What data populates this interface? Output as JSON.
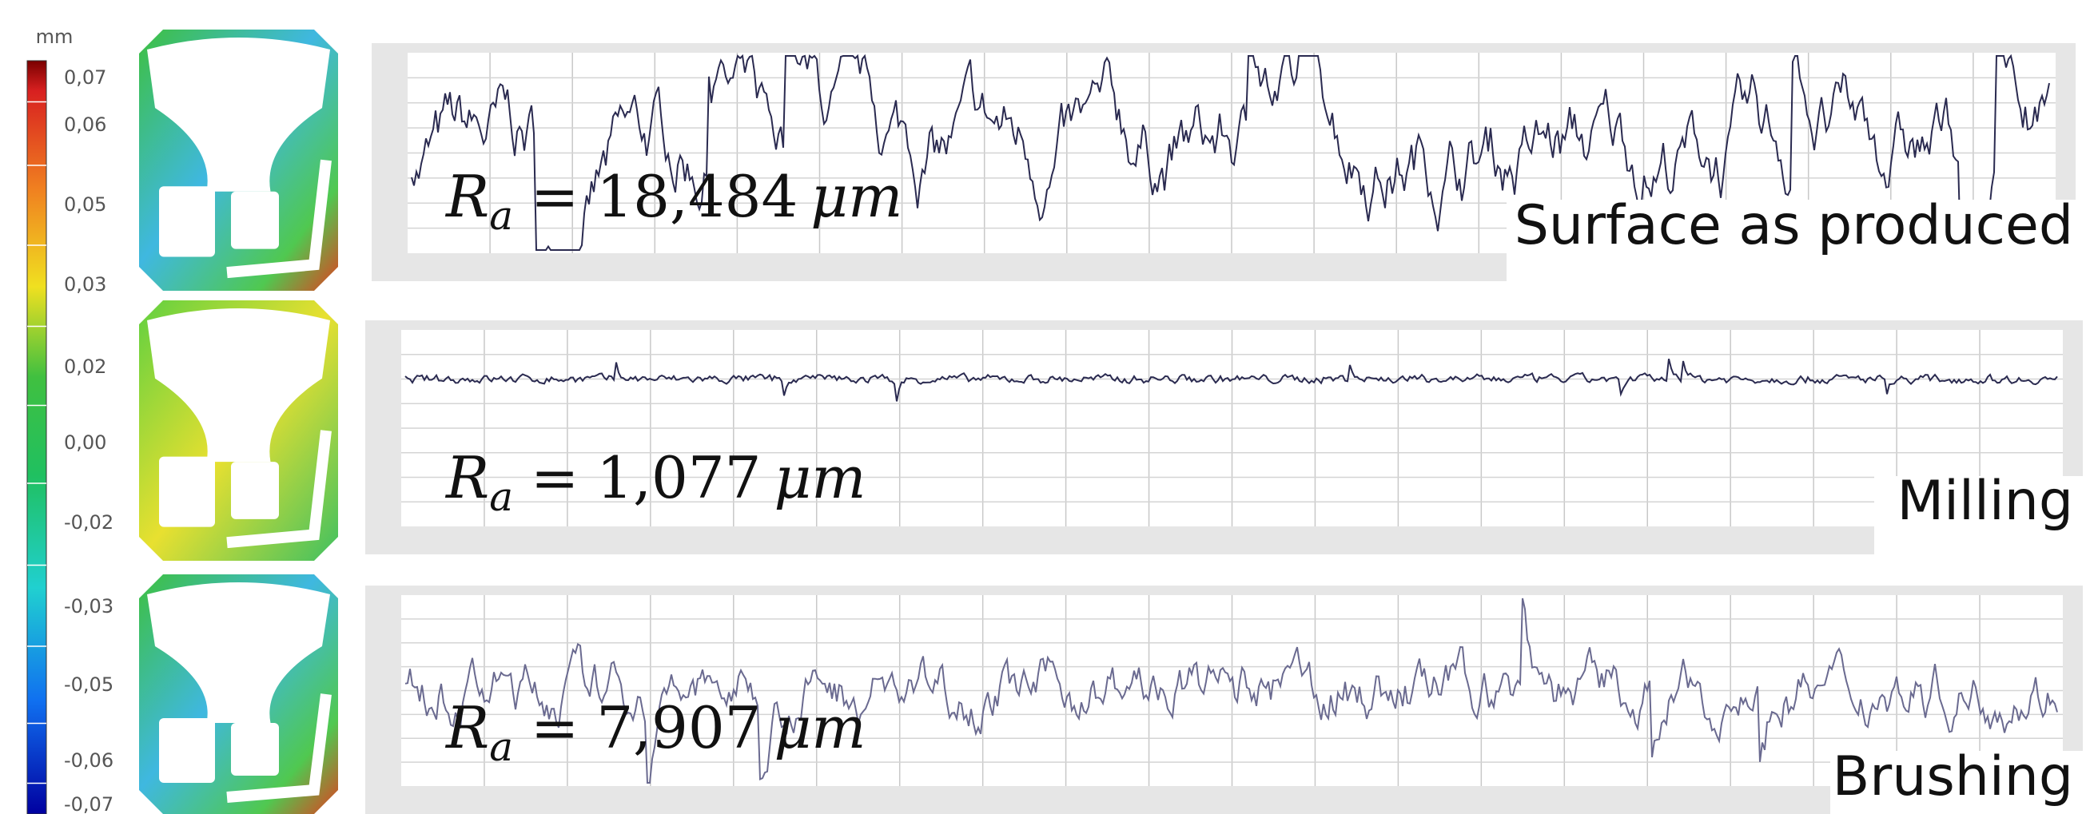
{
  "colorbar": {
    "unit": "mm",
    "labels": [
      "0,07",
      "0,06",
      "0,05",
      "0,03",
      "0,02",
      "0,00",
      "-0,02",
      "-0,03",
      "-0,05",
      "-0,06",
      "-0,07"
    ]
  },
  "roughness": {
    "symbol": "R",
    "subscript": "a",
    "equals": "=",
    "unit": "μm"
  },
  "panels": [
    {
      "ra_value": "18,484",
      "title": "Surface as produced"
    },
    {
      "ra_value": "1,077",
      "title": "Milling"
    },
    {
      "ra_value": "7,907",
      "title": "Brushing"
    }
  ]
}
